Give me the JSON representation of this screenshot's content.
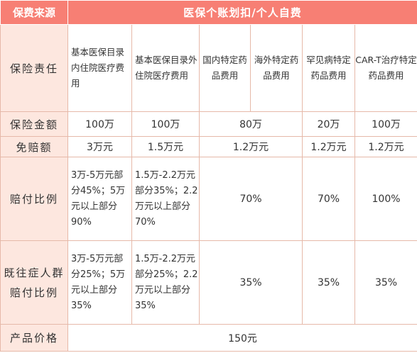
{
  "header": {
    "col1": "保费来源",
    "title": "医保个账划扣/个人自费"
  },
  "rows": {
    "coverage": {
      "label": "保险责任",
      "items": [
        "基本医保目录内住院医疗费用",
        "基本医保目录外住院医疗费用",
        "国内特定药品费用",
        "海外特定药品费用",
        "罕见病特定药品费用",
        "CAR-T治疗特定药品费用"
      ]
    },
    "amount": {
      "label": "保险金额",
      "values": [
        "100万",
        "100万",
        "80万",
        "20万",
        "100万"
      ]
    },
    "deductible": {
      "label": "免赔额",
      "values": [
        "3万元",
        "1.5万元",
        "1.2万元",
        "1.2万元",
        "1.2万元"
      ]
    },
    "ratio": {
      "label": "赔付比例",
      "col1": "3万-5万元部分45%；5万元以上部分90%",
      "col2": "1.5万-2.2万元部分35%；2.2万元以上部分70%",
      "domestic_overseas": "70%",
      "rare": "70%",
      "cart": "100%"
    },
    "preexisting": {
      "label1": "既往症人群",
      "label2": "赔付比例",
      "col1": "3万-5万元部分25%；5万元以上部分35%",
      "col2": "1.5万-2.2万元部分25%；2.2万元以上部分35%",
      "domestic_overseas": "35%",
      "rare": "35%",
      "cart": "35%"
    },
    "price": {
      "label": "产品价格",
      "value": "150元"
    }
  }
}
